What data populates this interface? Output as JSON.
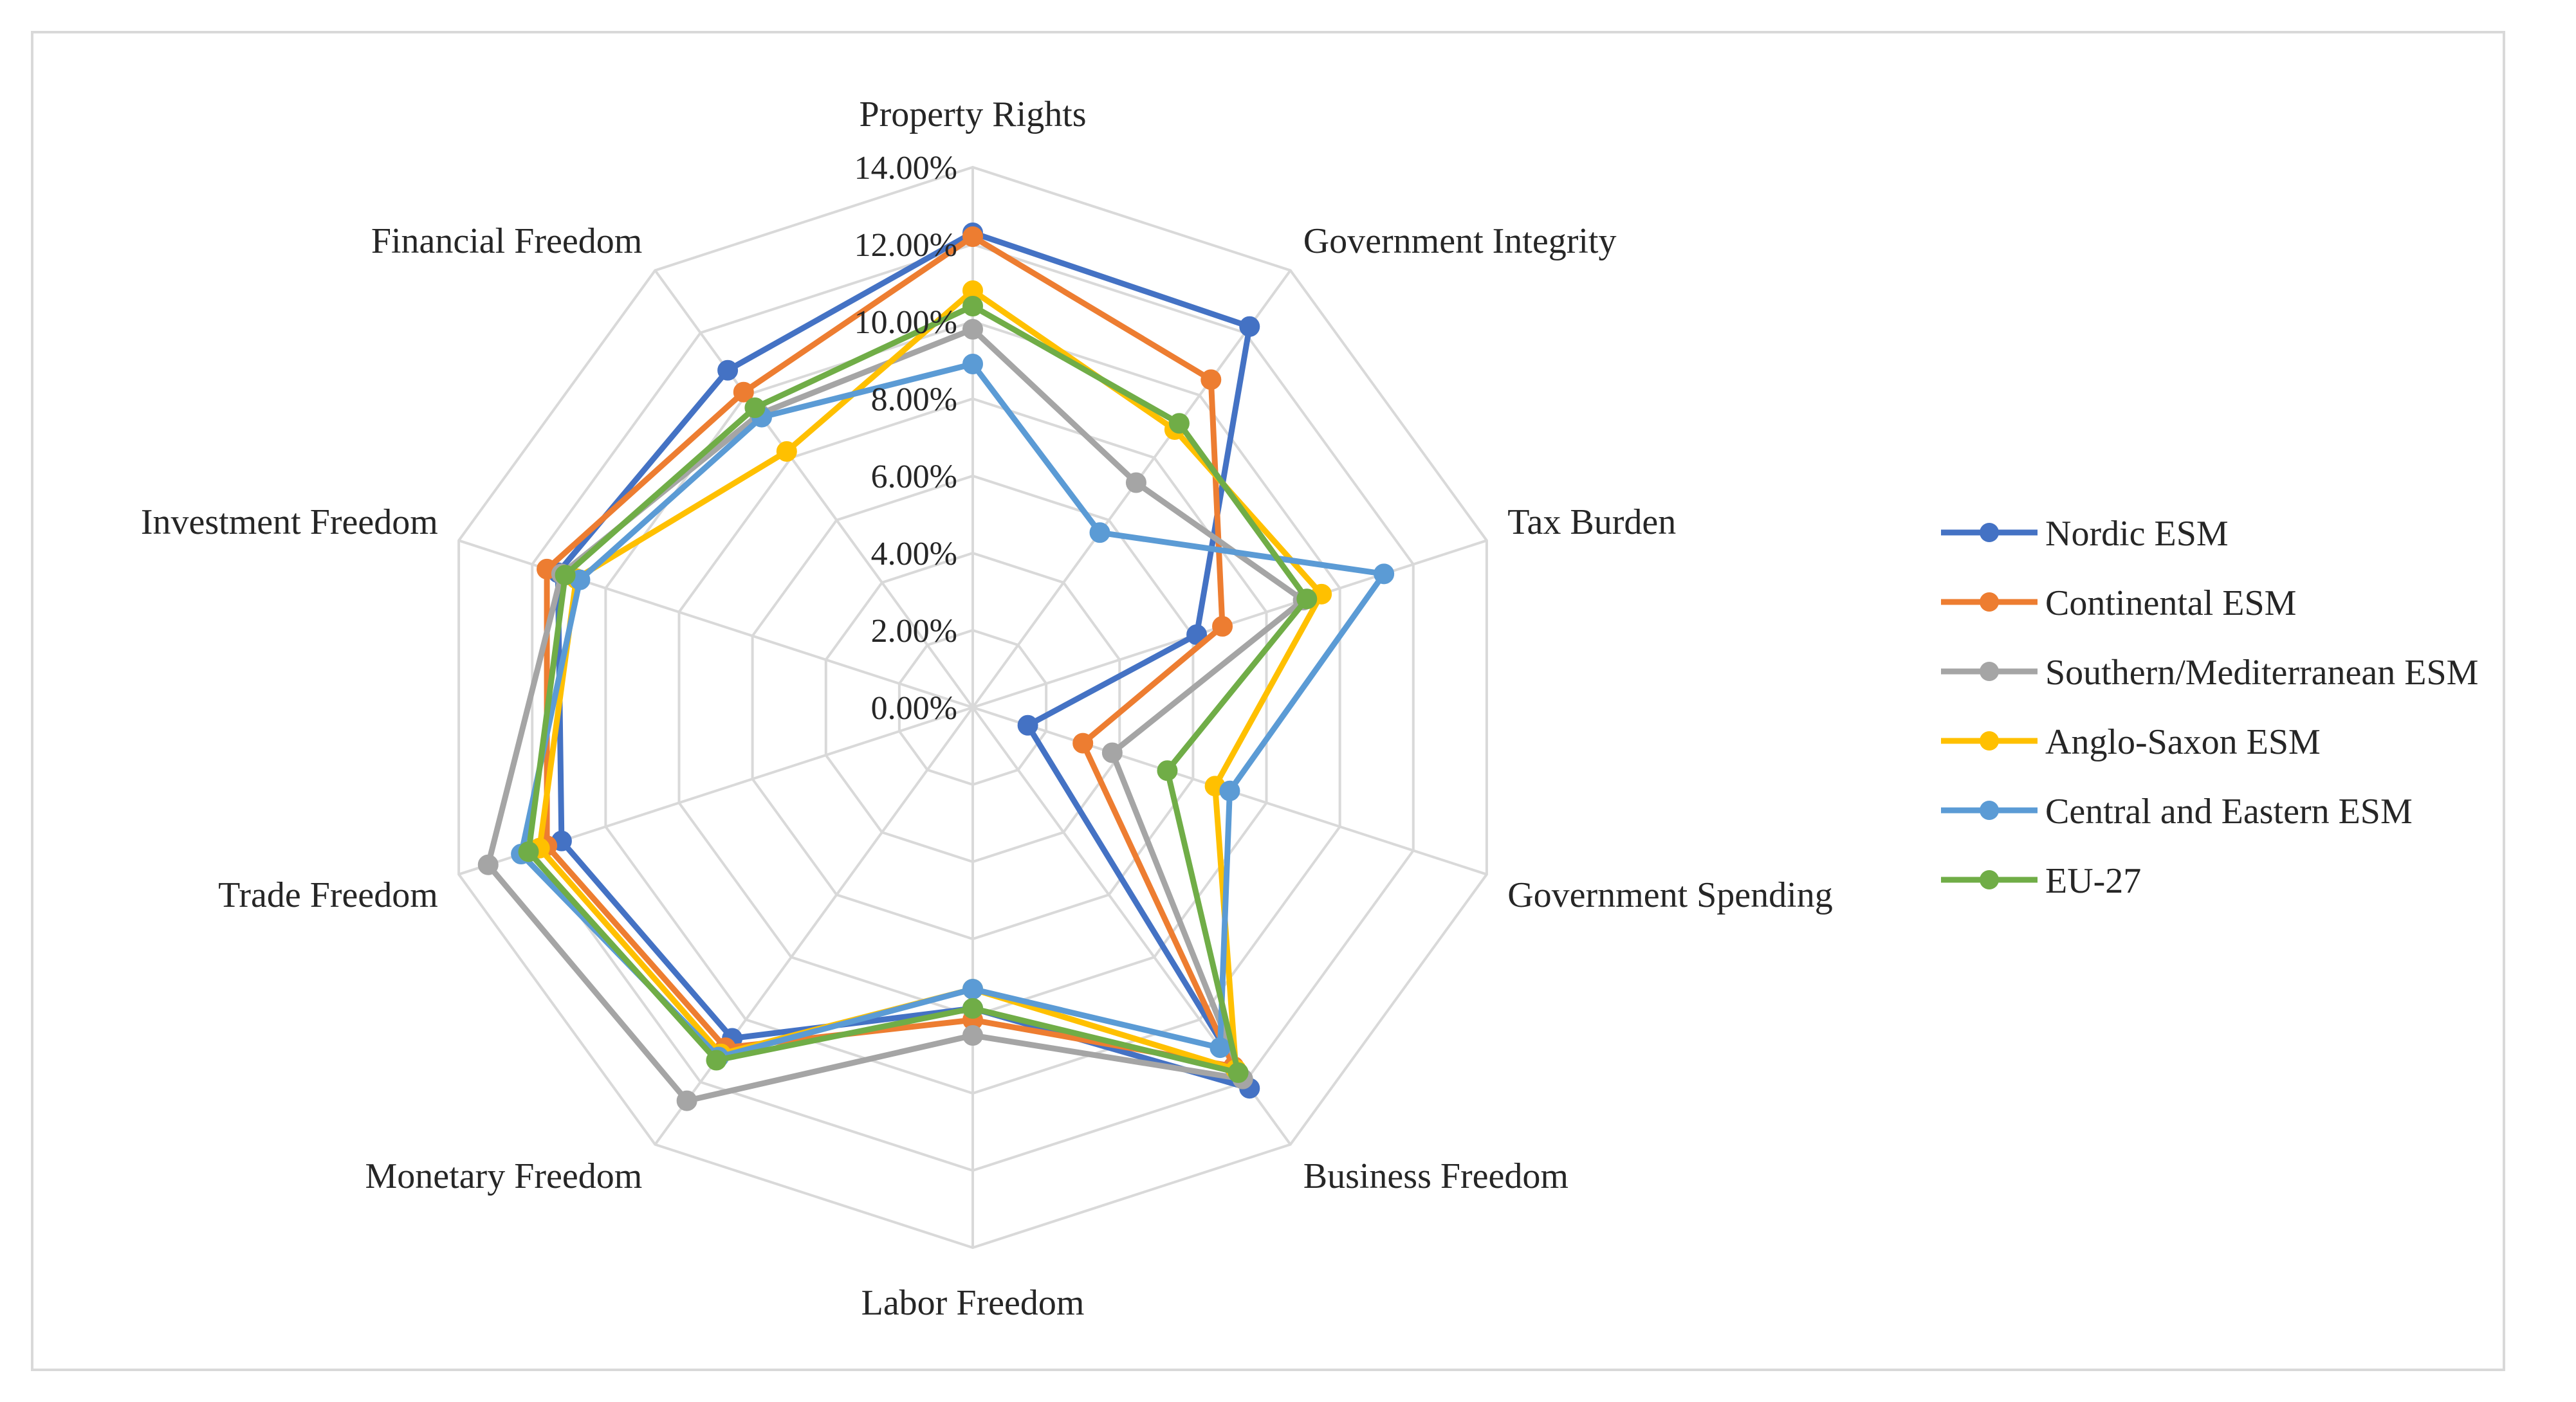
{
  "chart_data": {
    "type": "radar",
    "title": "",
    "axes": [
      "Property Rights",
      "Government Integrity",
      "Tax Burden",
      "Government Spending",
      "Business Freedom",
      "Labor Freedom",
      "Monetary Freedom",
      "Trade Freedom",
      "Investment Freedom",
      "Financial Freedom"
    ],
    "ticks": [
      "0.00%",
      "2.00%",
      "4.00%",
      "6.00%",
      "8.00%",
      "10.00%",
      "12.00%",
      "14.00%"
    ],
    "range": [
      0,
      14
    ],
    "legend_position": "right",
    "series": [
      {
        "name": "Nordic ESM",
        "color": "#4472c4",
        "values": [
          12.3,
          12.2,
          6.1,
          1.5,
          12.2,
          7.8,
          10.6,
          11.2,
          11.3,
          10.8
        ]
      },
      {
        "name": "Continental ESM",
        "color": "#ed7d31",
        "values": [
          12.2,
          10.5,
          6.8,
          3.0,
          11.5,
          8.1,
          10.9,
          11.6,
          11.6,
          10.1
        ]
      },
      {
        "name": "Southern/Mediterranean ESM",
        "color": "#a5a5a5",
        "values": [
          9.8,
          7.2,
          9.0,
          3.8,
          11.9,
          8.5,
          12.6,
          13.2,
          11.2,
          9.4
        ]
      },
      {
        "name": "Anglo-Saxon ESM",
        "color": "#ffc000",
        "values": [
          10.8,
          8.9,
          9.5,
          6.6,
          11.6,
          7.3,
          11.1,
          11.8,
          10.8,
          8.2
        ]
      },
      {
        "name": "Central and Eastern ESM",
        "color": "#5b9bd5",
        "values": [
          8.9,
          5.6,
          11.2,
          7.0,
          10.9,
          7.3,
          11.2,
          12.3,
          10.7,
          9.3
        ]
      },
      {
        "name": "EU-27",
        "color": "#70ad47",
        "values": [
          10.4,
          9.1,
          9.1,
          5.3,
          11.7,
          7.8,
          11.3,
          12.1,
          11.1,
          9.6
        ]
      }
    ]
  }
}
